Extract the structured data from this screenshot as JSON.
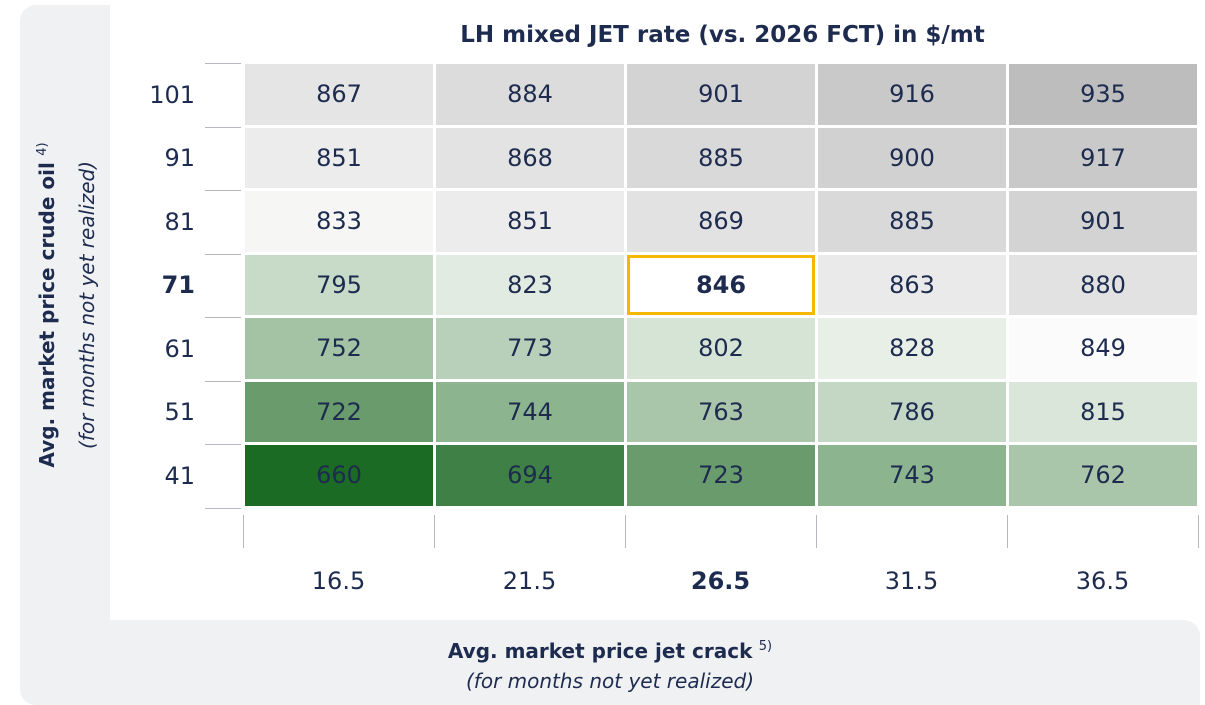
{
  "title": "LH mixed JET rate (vs. 2026 FCT) in $/mt",
  "y_axis": {
    "label": "Avg. market price crude oil",
    "footnote": "4)",
    "sublabel": "(for months not yet realized)"
  },
  "x_axis": {
    "label": "Avg. market price jet crack",
    "footnote": "5)",
    "sublabel": "(for months not yet realized)"
  },
  "rows": [
    "101",
    "91",
    "81",
    "71",
    "61",
    "51",
    "41"
  ],
  "columns": [
    "16.5",
    "21.5",
    "26.5",
    "31.5",
    "36.5"
  ],
  "cells": [
    [
      "867",
      "884",
      "901",
      "916",
      "935"
    ],
    [
      "851",
      "868",
      "885",
      "900",
      "917"
    ],
    [
      "833",
      "851",
      "869",
      "885",
      "901"
    ],
    [
      "795",
      "823",
      "846",
      "863",
      "880"
    ],
    [
      "752",
      "773",
      "802",
      "828",
      "849"
    ],
    [
      "722",
      "744",
      "763",
      "786",
      "815"
    ],
    [
      "660",
      "694",
      "723",
      "743",
      "762"
    ]
  ],
  "cell_colors": [
    [
      "#e5e5e6",
      "#dcdcdd",
      "#d3d3d4",
      "#c9c9ca",
      "#bdbdbe"
    ],
    [
      "#ececed",
      "#e3e3e4",
      "#d9d9da",
      "#d1d1d2",
      "#c9c9ca"
    ],
    [
      "#f6f7f5",
      "#ececed",
      "#e2e2e3",
      "#d9d9da",
      "#d3d3d4"
    ],
    [
      "#c7dbc8",
      "#e1ebe1",
      "#ffffff",
      "#eaeaeb",
      "#e2e2e3"
    ],
    [
      "#a4c3a5",
      "#b8d0b9",
      "#d6e4d6",
      "#e7efe7",
      "#fbfbfb"
    ],
    [
      "#6a9b6c",
      "#8cb48e",
      "#a9c6aa",
      "#c3d7c4",
      "#d9e6d9"
    ],
    [
      "#1b6b24",
      "#3e8045",
      "#6a9b6c",
      "#8cb48e",
      "#a9c6aa"
    ]
  ],
  "highlight": {
    "row": 3,
    "column": 2,
    "color": "#f5b800"
  }
}
